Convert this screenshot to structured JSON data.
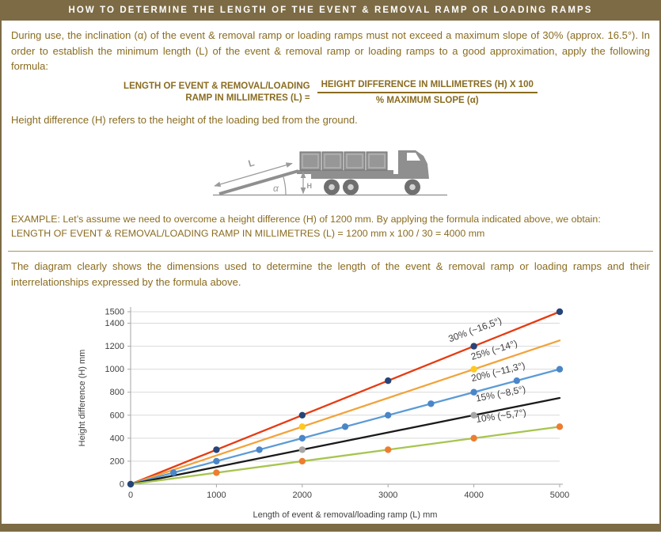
{
  "header": {
    "title": "HOW TO DETERMINE THE LENGTH OF THE EVENT & REMOVAL RAMP OR LOADING RAMPS"
  },
  "intro": {
    "text": "During use, the inclination (α) of the event & removal ramp or loading ramps must not exceed a maximum slope of 30% (approx. 16.5°). In order to establish the minimum length (L) of the event & removal ramp or loading ramps to a good approximation, apply the following formula:",
    "height_note": "Height difference (H) refers to the height of the loading bed from the ground."
  },
  "formula": {
    "lhs_line1": "LENGTH OF EVENT & REMOVAL/LOADING",
    "lhs_line2": "RAMP IN MILLIMETRES (L) =",
    "numerator": "HEIGHT DIFFERENCE IN MILLIMETRES (H) X 100",
    "denominator": "% MAXIMUM SLOPE (α)"
  },
  "illustration": {
    "length_label": "L",
    "angle_label": "α",
    "height_label": "H"
  },
  "example": {
    "line1": "EXAMPLE: Let’s assume we need to overcome a height difference (H) of 1200 mm. By applying the formula indicated above, we obtain:",
    "line2": "LENGTH OF EVENT & REMOVAL/LOADING RAMP IN MILLIMETRES (L) = 1200 mm x 100 / 30 = 4000 mm"
  },
  "diagram": {
    "text": "The diagram clearly shows the dimensions used to determine the length of the event & removal ramp or loading ramps and their interrelationships expressed by the formula above."
  },
  "chart_data": {
    "type": "line",
    "title": "",
    "xlabel": "Length of event & removal/loading ramp (L) mm",
    "ylabel": "Height difference (H) mm",
    "xlim": [
      0,
      5000
    ],
    "ylim": [
      0,
      1500
    ],
    "x_ticks": [
      0,
      1000,
      2000,
      3000,
      4000,
      5000
    ],
    "y_ticks": [
      0,
      200,
      400,
      600,
      800,
      1000,
      1200,
      1400,
      1500
    ],
    "grid": "horizontal",
    "legend_position": "inline-labels",
    "series": [
      {
        "name": "30% (~16,5°)",
        "slope_percent": 30,
        "color": "#e63b11",
        "x": [
          0,
          1000,
          2000,
          3000,
          4000,
          5000
        ],
        "y": [
          0,
          300,
          600,
          900,
          1200,
          1500
        ],
        "marker": {
          "color": "#264478",
          "x": [
            0,
            1000,
            2000,
            3000,
            4000,
            5000
          ]
        }
      },
      {
        "name": "25% (~14°)",
        "slope_percent": 25,
        "color": "#f2a33a",
        "x": [
          0,
          1000,
          2000,
          3000,
          4000,
          5000
        ],
        "y": [
          0,
          250,
          500,
          750,
          1000,
          1250
        ],
        "marker": {
          "color": "#ffc81e",
          "x": [
            2000,
            4000
          ]
        }
      },
      {
        "name": "20% (~11,3°)",
        "slope_percent": 20,
        "color": "#5b9bd5",
        "x": [
          0,
          1000,
          2000,
          3000,
          4000,
          5000
        ],
        "y": [
          0,
          200,
          400,
          600,
          800,
          1000
        ],
        "marker": {
          "color": "#4a86c8",
          "x": [
            500,
            1000,
            1500,
            2000,
            2500,
            3000,
            3500,
            4000,
            4500,
            5000
          ]
        }
      },
      {
        "name": "15% (~8,5°)",
        "slope_percent": 15,
        "color": "#1a1a1a",
        "x": [
          0,
          1000,
          2000,
          3000,
          4000,
          5000
        ],
        "y": [
          0,
          150,
          300,
          450,
          600,
          750
        ],
        "marker": {
          "color": "#a6a6a6",
          "x": [
            2000,
            4000
          ]
        }
      },
      {
        "name": "10% (~5,7°)",
        "slope_percent": 10,
        "color": "#a6c54f",
        "x": [
          0,
          1000,
          2000,
          3000,
          4000,
          5000
        ],
        "y": [
          0,
          100,
          200,
          300,
          400,
          500
        ],
        "marker": {
          "color": "#ed7d31",
          "x": [
            1000,
            2000,
            3000,
            4000,
            5000
          ]
        }
      }
    ],
    "labels": [
      {
        "text": "30% (~16,5°)",
        "x": 3720,
        "y": 1235,
        "angle": -20
      },
      {
        "text": "25% (~14°)",
        "x": 3980,
        "y": 1080,
        "angle": -17
      },
      {
        "text": "20% (~11,3°)",
        "x": 3980,
        "y": 893,
        "angle": -14
      },
      {
        "text": "15% (~8,5°)",
        "x": 4030,
        "y": 718,
        "angle": -11
      },
      {
        "text": "10% (~5,7°)",
        "x": 4030,
        "y": 537,
        "angle": -8
      }
    ]
  }
}
